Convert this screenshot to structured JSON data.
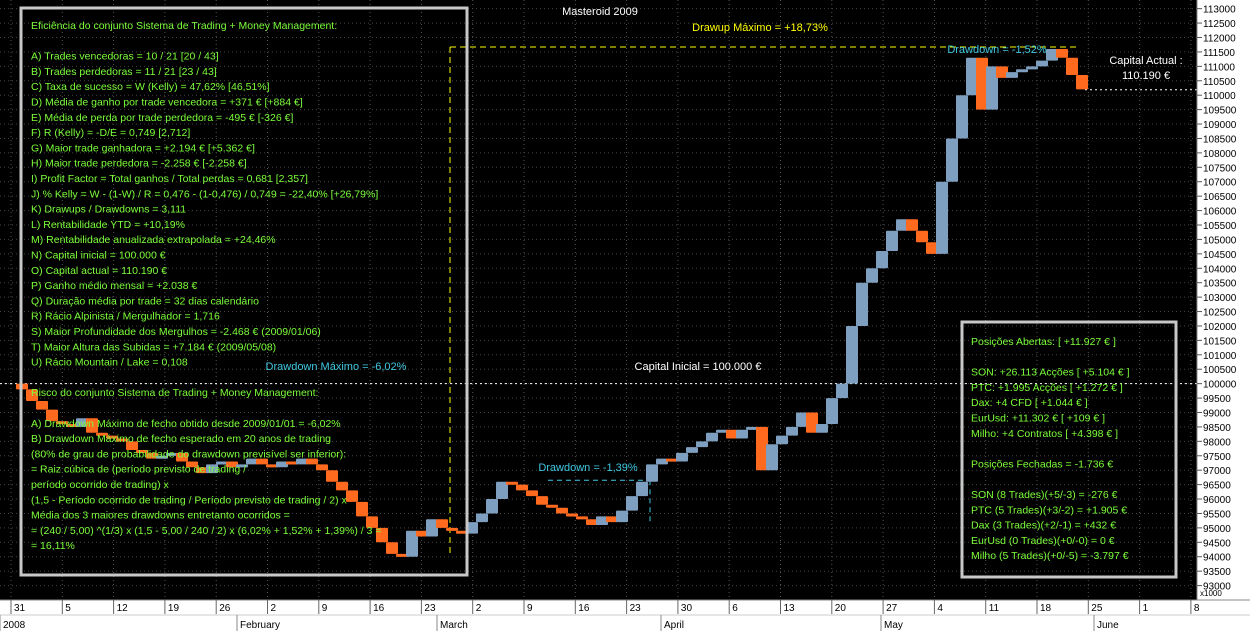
{
  "chart_title": "Masteroid 2009",
  "colors": {
    "background": "#000000",
    "up_candle": "#7f9fc0",
    "down_candle": "#ff6a1f",
    "panel_text": "#7cff3a",
    "panel_border": "#c8c8c8",
    "annotation_yellow": "#ffff00",
    "annotation_cyan": "#40c8e0",
    "annotation_white": "#ffffff",
    "axis_text": "#000000",
    "axis_bg": "#ffffff"
  },
  "annotations": {
    "drawup_max": "Drawup Máximo = +18,73%",
    "drawdown_top": "Drawdown = -1,52%",
    "capital_actual_label": "Capital Actual :",
    "capital_actual_value": "110.190 €",
    "capital_inicial": "Capital Inicial = 100.000 €",
    "drawdown_max": "Drawdown Máximo = -6,02%",
    "drawdown_mid": "Drawdown = -1,39%"
  },
  "left_panel": {
    "lines": [
      "Eficiência do conjunto Sistema de Trading + Money Management:",
      "",
      "A) Trades vencedoras = 10 / 21   [20 / 43]",
      "B) Trades perdedoras = 11 / 21   [23 / 43]",
      "C) Taxa de sucesso = W (Kelly) = 47,62%   [46,51%]",
      "D) Média de ganho por trade vencedora = +371 €   [+884 €]",
      "E) Média de perda por trade perdedora = -495 €   [-326 €]",
      "F) R (Kelly) = -D/E = 0,749   [2,712]",
      "G) Maior trade ganhadora = +2.194 €   [+5.362 €]",
      "H) Maior trade perdedora = -2.258 €   [-2.258 €]",
      "I) Profit Factor = Total ganhos / Total perdas = 0,681   [2,357]",
      "J) % Kelly = W - (1-W) / R = 0,476 - (1-0,476) / 0,749 = -22,40%   [+26,79%]",
      "K) Drawups / Drawdowns = 3,111",
      "L) Rentabilidade YTD = +10,19%",
      "M) Rentabilidade anualizada extrapolada = +24,46%",
      "N) Capital inicial = 100.000 €",
      "O) Capital actual = 110.190 €",
      "P) Ganho médio mensal = +2.038 €",
      "Q) Duração média por trade = 32 dias calendário",
      "R) Rácio Alpinista / Mergulhador = 1,716",
      "S) Maior Profundidade dos Mergulhos = -2.468 € (2009/01/06)",
      "T) Maior Altura das Subidas = +7.184 € (2009/05/08)",
      "U) Rácio Mountain / Lake = 0,108",
      "",
      "Risco do conjunto Sistema de Trading + Money Management:",
      "",
      "A) Drawdown Máximo de fecho obtido desde 2009/01/01 = -6,02%",
      "B) Drawdown Máximo de fecho esperado em 20 anos de trading",
      "(80% de grau de probabilidade do drawdown previsível ser inferior):",
      "= Raiz cúbica de (período previsto de trading /",
      "período ocorrido de trading) x",
      "(1,5 - Período ocorrido de trading / Período previsto de trading / 2) x",
      "Média dos 3 maiores drawdowns entretanto ocorridos =",
      "= (240 / 5,00) ^(1/3) x (1,5 - 5,00 / 240 / 2) x (6,02% + 1,52% + 1,39%) / 3 =",
      "= 16,11%"
    ]
  },
  "right_panel": {
    "lines": [
      "Posições Abertas: [ +11.927 € ]",
      "",
      "SON: +26.113 Acções [ +5.104 € ]",
      "PTC: +1.995 Acções [ +1.272 € ]",
      "Dax: +4 CFD [ +1.044 € ]",
      "EurUsd: +11.302 € [ +109 € ]",
      "Milho: +4 Contratos [ +4.398 € ]",
      "",
      "Posições Fechadas = -1.736 €",
      "",
      "SON (8 Trades)(+5/-3) = -276 €",
      "PTC (5 Trades)(+3/-2) = +1.905 €",
      "Dax (3 Trades)(+2/-1) = +432 €",
      "EurUsd (0 Trades)(+0/-0) = 0 €",
      "Milho (5 Trades)(+0/-5) = -3.797 €"
    ]
  },
  "chart_data": {
    "type": "candlestick",
    "title": "Masteroid 2009",
    "y_scale_label": "x1000",
    "ylim": [
      92500,
      113300
    ],
    "y_ticks": [
      93000,
      93500,
      94000,
      94500,
      95000,
      95500,
      96000,
      96500,
      97000,
      97500,
      98000,
      98500,
      99000,
      99500,
      100000,
      100500,
      101000,
      101500,
      102000,
      102500,
      103000,
      103500,
      104000,
      104500,
      105000,
      105500,
      106000,
      106500,
      107000,
      107500,
      108000,
      108500,
      109000,
      109500,
      110000,
      110500,
      111000,
      111500,
      112000,
      112500,
      113000
    ],
    "x_day_ticks": [
      "31",
      "5",
      "12",
      "19",
      "26",
      "2",
      "9",
      "16",
      "23",
      "2",
      "9",
      "16",
      "23",
      "30",
      "6",
      "13",
      "20",
      "27",
      "4",
      "11",
      "18",
      "25",
      "1",
      "8"
    ],
    "x_month_labels": [
      "2008",
      "February",
      "March",
      "April",
      "May",
      "June"
    ],
    "reference_levels": {
      "capital_inicial": 100000,
      "capital_actual": 110190,
      "drawup_peak": 111600
    },
    "series": [
      {
        "name": "",
        "candles": [
          {
            "open": 100000,
            "close": 99800
          },
          {
            "open": 99800,
            "close": 99400
          },
          {
            "open": 99400,
            "close": 99100
          },
          {
            "open": 99100,
            "close": 98700
          },
          {
            "open": 98700,
            "close": 98600
          },
          {
            "open": 98600,
            "close": 98500
          },
          {
            "open": 98500,
            "close": 98800
          },
          {
            "open": 98800,
            "close": 98300
          },
          {
            "open": 98300,
            "close": 98200
          },
          {
            "open": 98200,
            "close": 98100
          },
          {
            "open": 98100,
            "close": 98000
          },
          {
            "open": 98000,
            "close": 97700
          },
          {
            "open": 97700,
            "close": 97600
          },
          {
            "open": 97600,
            "close": 97400
          },
          {
            "open": 97400,
            "close": 97500
          },
          {
            "open": 97500,
            "close": 97600
          },
          {
            "open": 97600,
            "close": 97300
          },
          {
            "open": 97300,
            "close": 97100
          },
          {
            "open": 97100,
            "close": 96900
          },
          {
            "open": 96900,
            "close": 97200
          },
          {
            "open": 97200,
            "close": 97300
          },
          {
            "open": 97300,
            "close": 97100
          },
          {
            "open": 97100,
            "close": 97200
          },
          {
            "open": 97200,
            "close": 97400
          },
          {
            "open": 97400,
            "close": 97200
          },
          {
            "open": 97200,
            "close": 97100
          },
          {
            "open": 97100,
            "close": 97300
          },
          {
            "open": 97300,
            "close": 97200
          },
          {
            "open": 97200,
            "close": 97400
          },
          {
            "open": 97400,
            "close": 97200
          },
          {
            "open": 97200,
            "close": 97000
          },
          {
            "open": 97000,
            "close": 96600
          },
          {
            "open": 96600,
            "close": 96300
          },
          {
            "open": 96300,
            "close": 95900
          },
          {
            "open": 95900,
            "close": 95400
          },
          {
            "open": 95400,
            "close": 95000
          },
          {
            "open": 95000,
            "close": 94500
          },
          {
            "open": 94500,
            "close": 94100
          },
          {
            "open": 94100,
            "close": 94000
          },
          {
            "open": 94000,
            "close": 94900
          },
          {
            "open": 94900,
            "close": 94700
          },
          {
            "open": 94700,
            "close": 95300
          },
          {
            "open": 95300,
            "close": 95000
          },
          {
            "open": 95000,
            "close": 94900
          },
          {
            "open": 94900,
            "close": 94800
          },
          {
            "open": 94800,
            "close": 95200
          },
          {
            "open": 95200,
            "close": 95500
          },
          {
            "open": 95500,
            "close": 96000
          },
          {
            "open": 96000,
            "close": 96600
          },
          {
            "open": 96600,
            "close": 96500
          },
          {
            "open": 96500,
            "close": 96300
          },
          {
            "open": 96300,
            "close": 96100
          },
          {
            "open": 96100,
            "close": 95800
          },
          {
            "open": 95800,
            "close": 95700
          },
          {
            "open": 95700,
            "close": 95500
          },
          {
            "open": 95500,
            "close": 95400
          },
          {
            "open": 95400,
            "close": 95300
          },
          {
            "open": 95300,
            "close": 95100
          },
          {
            "open": 95100,
            "close": 95400
          },
          {
            "open": 95400,
            "close": 95200
          },
          {
            "open": 95200,
            "close": 95600
          },
          {
            "open": 95600,
            "close": 96100
          },
          {
            "open": 96100,
            "close": 96600
          },
          {
            "open": 96600,
            "close": 97200
          },
          {
            "open": 97200,
            "close": 97400
          },
          {
            "open": 97400,
            "close": 97300
          },
          {
            "open": 97300,
            "close": 97600
          },
          {
            "open": 97600,
            "close": 97800
          },
          {
            "open": 97800,
            "close": 98000
          },
          {
            "open": 98000,
            "close": 98300
          },
          {
            "open": 98300,
            "close": 98400
          },
          {
            "open": 98400,
            "close": 98100
          },
          {
            "open": 98100,
            "close": 98400
          },
          {
            "open": 98400,
            "close": 98500
          },
          {
            "open": 98500,
            "close": 97000
          },
          {
            "open": 97000,
            "close": 97900
          },
          {
            "open": 97900,
            "close": 98200
          },
          {
            "open": 98200,
            "close": 98500
          },
          {
            "open": 98500,
            "close": 99000
          },
          {
            "open": 99000,
            "close": 98300
          },
          {
            "open": 98300,
            "close": 98600
          },
          {
            "open": 98600,
            "close": 99500
          },
          {
            "open": 99500,
            "close": 100000
          },
          {
            "open": 100000,
            "close": 102000
          },
          {
            "open": 102000,
            "close": 103500
          },
          {
            "open": 103500,
            "close": 104000
          },
          {
            "open": 104000,
            "close": 104600
          },
          {
            "open": 104600,
            "close": 105300
          },
          {
            "open": 105300,
            "close": 105700
          },
          {
            "open": 105700,
            "close": 105300
          },
          {
            "open": 105300,
            "close": 104900
          },
          {
            "open": 104900,
            "close": 104500
          },
          {
            "open": 104500,
            "close": 107000
          },
          {
            "open": 107000,
            "close": 108500
          },
          {
            "open": 108500,
            "close": 110000
          },
          {
            "open": 110000,
            "close": 111300
          },
          {
            "open": 111300,
            "close": 109500
          },
          {
            "open": 109500,
            "close": 111000
          },
          {
            "open": 111000,
            "close": 110600
          },
          {
            "open": 110600,
            "close": 110800
          },
          {
            "open": 110800,
            "close": 110900
          },
          {
            "open": 110900,
            "close": 111000
          },
          {
            "open": 111000,
            "close": 111200
          },
          {
            "open": 111200,
            "close": 111600
          },
          {
            "open": 111600,
            "close": 111300
          },
          {
            "open": 111300,
            "close": 110700
          },
          {
            "open": 110700,
            "close": 110200
          }
        ]
      }
    ]
  }
}
